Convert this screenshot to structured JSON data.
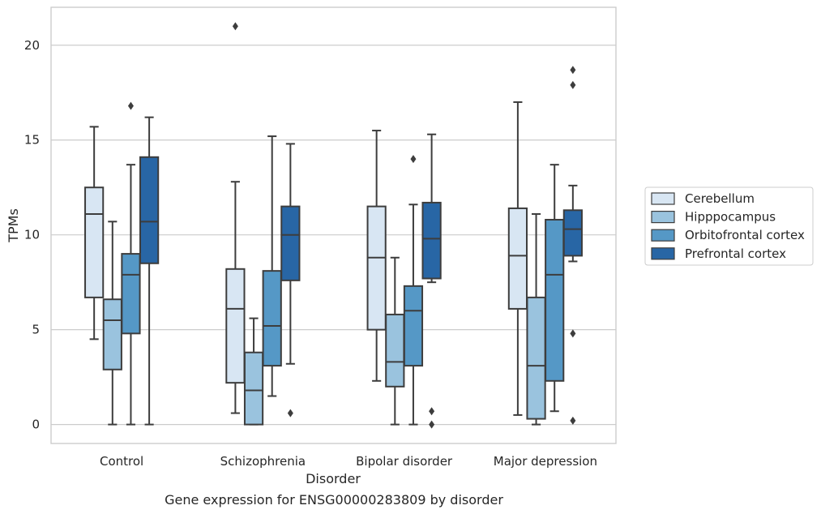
{
  "chart_data": {
    "type": "box",
    "title": "",
    "caption": "Gene expression for ENSG00000283809 by disorder",
    "xlabel": "Disorder",
    "ylabel": "TPMs",
    "ylim": [
      -1,
      22
    ],
    "yticks": [
      0,
      5,
      10,
      15,
      20
    ],
    "grid": "horizontal",
    "legend_position": "right",
    "categories": [
      "Control",
      "Schizophrenia",
      "Bipolar disorder",
      "Major depression"
    ],
    "series": [
      {
        "name": "Cerebellum",
        "color": "#d8e6f3",
        "boxes": [
          {
            "whisker_low": 4.5,
            "q1": 6.7,
            "median": 11.1,
            "q3": 12.5,
            "whisker_high": 15.7,
            "outliers": []
          },
          {
            "whisker_low": 0.6,
            "q1": 2.2,
            "median": 6.1,
            "q3": 8.2,
            "whisker_high": 12.8,
            "outliers": [
              21.0
            ]
          },
          {
            "whisker_low": 2.3,
            "q1": 5.0,
            "median": 8.8,
            "q3": 11.5,
            "whisker_high": 15.5,
            "outliers": []
          },
          {
            "whisker_low": 0.5,
            "q1": 6.1,
            "median": 8.9,
            "q3": 11.4,
            "whisker_high": 17.0,
            "outliers": []
          }
        ]
      },
      {
        "name": "Hipppocampus",
        "color": "#9ac3de",
        "boxes": [
          {
            "whisker_low": 0.0,
            "q1": 2.9,
            "median": 5.5,
            "q3": 6.6,
            "whisker_high": 10.7,
            "outliers": []
          },
          {
            "whisker_low": 0.0,
            "q1": 0.0,
            "median": 1.8,
            "q3": 3.8,
            "whisker_high": 5.6,
            "outliers": []
          },
          {
            "whisker_low": 0.0,
            "q1": 2.0,
            "median": 3.3,
            "q3": 5.8,
            "whisker_high": 8.8,
            "outliers": []
          },
          {
            "whisker_low": 0.0,
            "q1": 0.3,
            "median": 3.1,
            "q3": 6.7,
            "whisker_high": 11.1,
            "outliers": []
          }
        ]
      },
      {
        "name": "Orbitofrontal cortex",
        "color": "#5598c6",
        "boxes": [
          {
            "whisker_low": 0.0,
            "q1": 4.8,
            "median": 7.9,
            "q3": 9.0,
            "whisker_high": 13.7,
            "outliers": [
              16.8
            ]
          },
          {
            "whisker_low": 1.5,
            "q1": 3.1,
            "median": 5.2,
            "q3": 8.1,
            "whisker_high": 15.2,
            "outliers": []
          },
          {
            "whisker_low": 0.0,
            "q1": 3.1,
            "median": 6.0,
            "q3": 7.3,
            "whisker_high": 11.6,
            "outliers": [
              14.0
            ]
          },
          {
            "whisker_low": 0.7,
            "q1": 2.3,
            "median": 7.9,
            "q3": 10.8,
            "whisker_high": 13.7,
            "outliers": []
          }
        ]
      },
      {
        "name": "Prefrontal cortex",
        "color": "#2866a5",
        "boxes": [
          {
            "whisker_low": 0.0,
            "q1": 8.5,
            "median": 10.7,
            "q3": 14.1,
            "whisker_high": 16.2,
            "outliers": []
          },
          {
            "whisker_low": 3.2,
            "q1": 7.6,
            "median": 10.0,
            "q3": 11.5,
            "whisker_high": 14.8,
            "outliers": [
              0.6
            ]
          },
          {
            "whisker_low": 7.5,
            "q1": 7.7,
            "median": 9.8,
            "q3": 11.7,
            "whisker_high": 15.3,
            "outliers": [
              0.7,
              0.0
            ]
          },
          {
            "whisker_low": 8.6,
            "q1": 8.9,
            "median": 10.3,
            "q3": 11.3,
            "whisker_high": 12.6,
            "outliers": [
              18.7,
              17.9,
              4.8,
              0.2
            ]
          }
        ]
      }
    ]
  }
}
